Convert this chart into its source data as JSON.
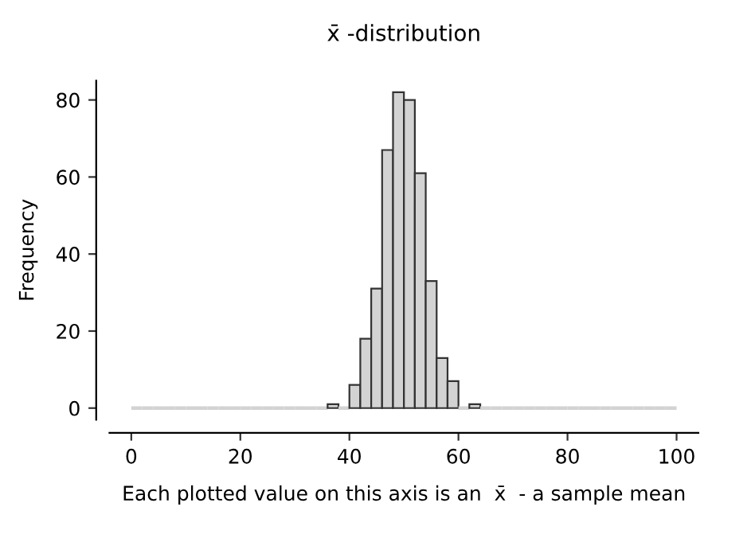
{
  "chart_data": {
    "type": "histogram",
    "title": "x̄ -distribution",
    "xlabel": "Each plotted value on this axis is an  x̄  - a sample mean",
    "ylabel": "Frequency",
    "bins": [
      0,
      2,
      4,
      6,
      8,
      10,
      12,
      14,
      16,
      18,
      20,
      22,
      24,
      26,
      28,
      30,
      32,
      34,
      36,
      38,
      40,
      42,
      44,
      46,
      48,
      50,
      52,
      54,
      56,
      58,
      60,
      62,
      64,
      66,
      68,
      70,
      72,
      74,
      76,
      78,
      80,
      82,
      84,
      86,
      88,
      90,
      92,
      94,
      96,
      98,
      100
    ],
    "values": [
      0,
      0,
      0,
      0,
      0,
      0,
      0,
      0,
      0,
      0,
      0,
      0,
      0,
      0,
      0,
      0,
      0,
      0,
      1,
      0,
      6,
      18,
      31,
      67,
      82,
      80,
      61,
      33,
      13,
      7,
      0,
      1,
      0,
      0,
      0,
      0,
      0,
      0,
      0,
      0,
      0,
      0,
      0,
      0,
      0,
      0,
      0,
      0,
      0,
      0
    ],
    "color": "#d3d3d3",
    "xlim": [
      -4,
      104
    ],
    "ylim": [
      -3,
      85
    ],
    "xticks": [
      0,
      20,
      40,
      60,
      80,
      100
    ],
    "yticks": [
      0,
      20,
      40,
      60,
      80
    ],
    "grid": false
  }
}
